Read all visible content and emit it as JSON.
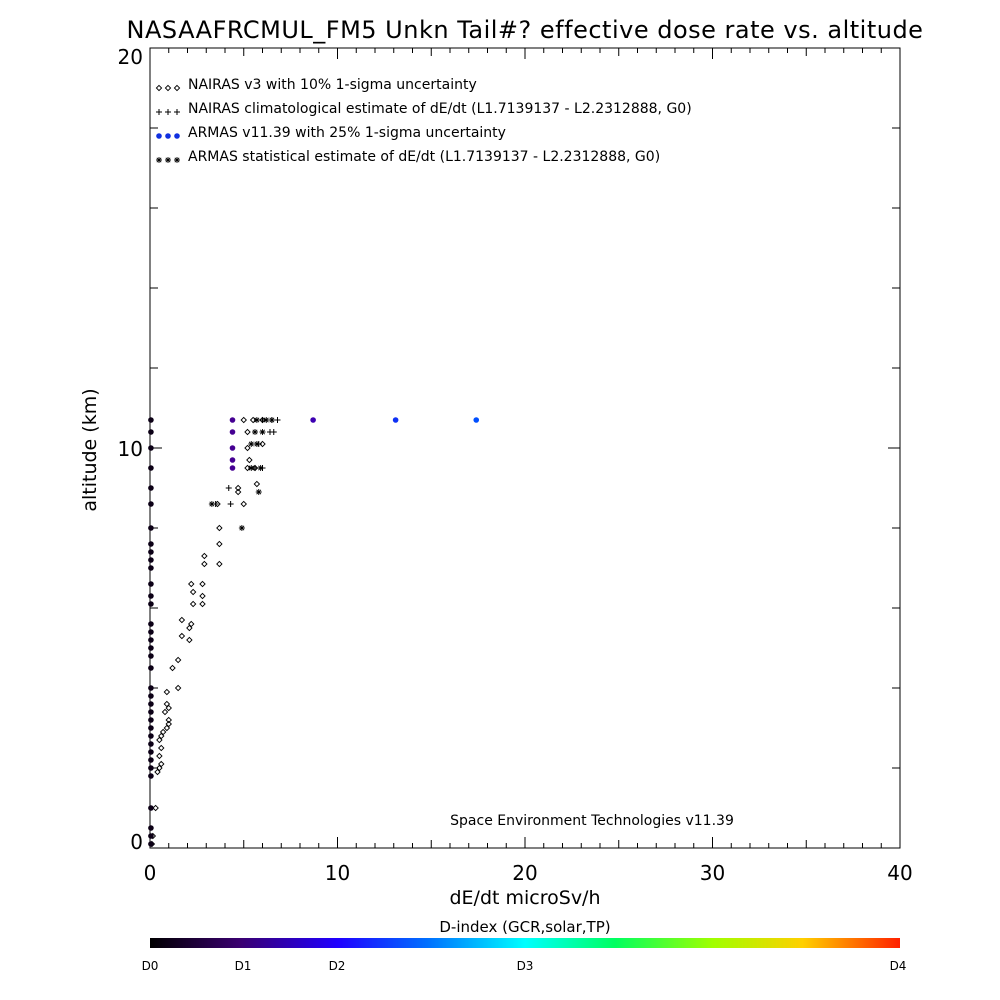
{
  "chart_data": {
    "type": "scatter",
    "title": "NASAAFRCMUL_FM5 Unkn Tail#? effective dose rate vs. altitude",
    "xlabel": "dE/dt microSv/h",
    "ylabel": "altitude (km)",
    "xlim": [
      0,
      40
    ],
    "ylim": [
      0,
      20
    ],
    "x_ticks": [
      "0",
      "10",
      "20",
      "30",
      "40"
    ],
    "y_ticks": [
      "0",
      "10",
      "20"
    ],
    "legend_position": "top-left",
    "credit": "Space Environment Technologies v11.39",
    "colorbar": {
      "title": "D-index (GCR,solar,TP)",
      "labels": [
        {
          "text": "D0",
          "value": 0
        },
        {
          "text": "D1",
          "value": 1
        },
        {
          "text": "D2",
          "value": 2
        },
        {
          "text": "D3",
          "value": 3
        },
        {
          "text": "D4",
          "value": 4
        }
      ]
    },
    "series": [
      {
        "name": "NAIRAS v3 with 10% 1-sigma uncertainty",
        "marker": "diamond",
        "points": [
          [
            0.1,
            0.1
          ],
          [
            0.15,
            0.3
          ],
          [
            0.3,
            1.0
          ],
          [
            0.4,
            1.9
          ],
          [
            0.5,
            2.0
          ],
          [
            0.6,
            2.1
          ],
          [
            0.5,
            2.3
          ],
          [
            0.6,
            2.5
          ],
          [
            0.5,
            2.7
          ],
          [
            0.6,
            2.8
          ],
          [
            0.7,
            2.9
          ],
          [
            0.9,
            3.0
          ],
          [
            1.0,
            3.1
          ],
          [
            1.0,
            3.2
          ],
          [
            0.8,
            3.4
          ],
          [
            1.0,
            3.5
          ],
          [
            0.9,
            3.6
          ],
          [
            0.9,
            3.9
          ],
          [
            1.5,
            4.0
          ],
          [
            1.2,
            4.5
          ],
          [
            1.5,
            4.7
          ],
          [
            2.1,
            5.2
          ],
          [
            1.7,
            5.3
          ],
          [
            2.1,
            5.5
          ],
          [
            2.2,
            5.6
          ],
          [
            1.7,
            5.7
          ],
          [
            2.3,
            6.1
          ],
          [
            2.8,
            6.1
          ],
          [
            2.8,
            6.3
          ],
          [
            2.3,
            6.4
          ],
          [
            2.2,
            6.6
          ],
          [
            2.8,
            6.6
          ],
          [
            3.7,
            7.1
          ],
          [
            2.9,
            7.1
          ],
          [
            2.9,
            7.3
          ],
          [
            3.7,
            7.6
          ],
          [
            3.7,
            8.0
          ],
          [
            5.0,
            8.6
          ],
          [
            3.6,
            8.6
          ],
          [
            4.7,
            8.9
          ],
          [
            4.7,
            9.0
          ],
          [
            5.7,
            9.1
          ],
          [
            5.2,
            9.5
          ],
          [
            5.6,
            9.5
          ],
          [
            5.3,
            9.7
          ],
          [
            5.2,
            10.0
          ],
          [
            6.0,
            10.1
          ],
          [
            5.2,
            10.4
          ],
          [
            5.0,
            10.7
          ],
          [
            5.5,
            10.7
          ],
          [
            6.0,
            10.7
          ]
        ]
      },
      {
        "name": "NAIRAS climatological estimate of dE/dt (L1.7139137 - L2.2312888, G0)",
        "marker": "plus",
        "points": [
          [
            3.5,
            8.6
          ],
          [
            4.3,
            8.6
          ],
          [
            4.2,
            9.0
          ],
          [
            5.6,
            9.5
          ],
          [
            6.0,
            9.5
          ],
          [
            5.8,
            10.1
          ],
          [
            6.4,
            10.4
          ],
          [
            6.6,
            10.4
          ],
          [
            6.0,
            10.7
          ],
          [
            6.5,
            10.7
          ],
          [
            6.8,
            10.7
          ]
        ]
      },
      {
        "name": "ARMAS v11.39 with 25% 1-sigma uncertainty",
        "marker": "dot",
        "color_by": "D-index",
        "points": [
          {
            "x": 0.05,
            "y": 0.1,
            "d": 0.1
          },
          {
            "x": 0.05,
            "y": 0.3,
            "d": 0.1
          },
          {
            "x": 0.05,
            "y": 0.5,
            "d": 0.1
          },
          {
            "x": 0.05,
            "y": 1.0,
            "d": 0.1
          },
          {
            "x": 0.05,
            "y": 1.8,
            "d": 0.1
          },
          {
            "x": 0.05,
            "y": 2.0,
            "d": 0.1
          },
          {
            "x": 0.05,
            "y": 2.2,
            "d": 0.1
          },
          {
            "x": 0.05,
            "y": 2.4,
            "d": 0.1
          },
          {
            "x": 0.05,
            "y": 2.6,
            "d": 0.1
          },
          {
            "x": 0.05,
            "y": 2.8,
            "d": 0.1
          },
          {
            "x": 0.05,
            "y": 3.0,
            "d": 0.1
          },
          {
            "x": 0.05,
            "y": 3.2,
            "d": 0.1
          },
          {
            "x": 0.05,
            "y": 3.4,
            "d": 0.1
          },
          {
            "x": 0.05,
            "y": 3.6,
            "d": 0.1
          },
          {
            "x": 0.05,
            "y": 3.8,
            "d": 0.1
          },
          {
            "x": 0.05,
            "y": 4.0,
            "d": 0.1
          },
          {
            "x": 0.05,
            "y": 4.5,
            "d": 0.1
          },
          {
            "x": 0.05,
            "y": 4.8,
            "d": 0.1
          },
          {
            "x": 0.05,
            "y": 5.0,
            "d": 0.1
          },
          {
            "x": 0.05,
            "y": 5.2,
            "d": 0.1
          },
          {
            "x": 0.05,
            "y": 5.4,
            "d": 0.1
          },
          {
            "x": 0.05,
            "y": 5.6,
            "d": 0.1
          },
          {
            "x": 0.05,
            "y": 6.1,
            "d": 0.1
          },
          {
            "x": 0.05,
            "y": 6.3,
            "d": 0.1
          },
          {
            "x": 0.05,
            "y": 6.6,
            "d": 0.1
          },
          {
            "x": 0.05,
            "y": 7.0,
            "d": 0.1
          },
          {
            "x": 0.05,
            "y": 7.2,
            "d": 0.1
          },
          {
            "x": 0.05,
            "y": 7.4,
            "d": 0.1
          },
          {
            "x": 0.05,
            "y": 7.6,
            "d": 0.1
          },
          {
            "x": 0.05,
            "y": 8.0,
            "d": 0.1
          },
          {
            "x": 0.05,
            "y": 8.6,
            "d": 0.1
          },
          {
            "x": 0.05,
            "y": 9.0,
            "d": 0.1
          },
          {
            "x": 0.05,
            "y": 9.5,
            "d": 0.1
          },
          {
            "x": 0.05,
            "y": 10.0,
            "d": 0.1
          },
          {
            "x": 0.05,
            "y": 10.4,
            "d": 0.1
          },
          {
            "x": 0.05,
            "y": 10.7,
            "d": 0.1
          },
          {
            "x": 4.4,
            "y": 9.5,
            "d": 0.95
          },
          {
            "x": 4.4,
            "y": 9.7,
            "d": 0.95
          },
          {
            "x": 4.4,
            "y": 10.0,
            "d": 0.95
          },
          {
            "x": 4.4,
            "y": 10.4,
            "d": 0.95
          },
          {
            "x": 4.4,
            "y": 10.7,
            "d": 0.95
          },
          {
            "x": 8.7,
            "y": 10.7,
            "d": 1.2
          },
          {
            "x": 13.1,
            "y": 10.7,
            "d": 1.85
          },
          {
            "x": 17.4,
            "y": 10.7,
            "d": 2.05
          }
        ]
      },
      {
        "name": "ARMAS statistical estimate of dE/dt (L1.7139137 - L2.2312888, G0)",
        "marker": "asterisk",
        "points": [
          [
            3.3,
            8.6
          ],
          [
            4.9,
            8.0
          ],
          [
            5.8,
            8.9
          ],
          [
            5.4,
            9.5
          ],
          [
            5.9,
            9.5
          ],
          [
            5.4,
            10.1
          ],
          [
            5.7,
            10.1
          ],
          [
            5.6,
            10.4
          ],
          [
            6.0,
            10.4
          ],
          [
            5.7,
            10.7
          ],
          [
            6.2,
            10.7
          ],
          [
            6.5,
            10.7
          ]
        ]
      }
    ]
  }
}
